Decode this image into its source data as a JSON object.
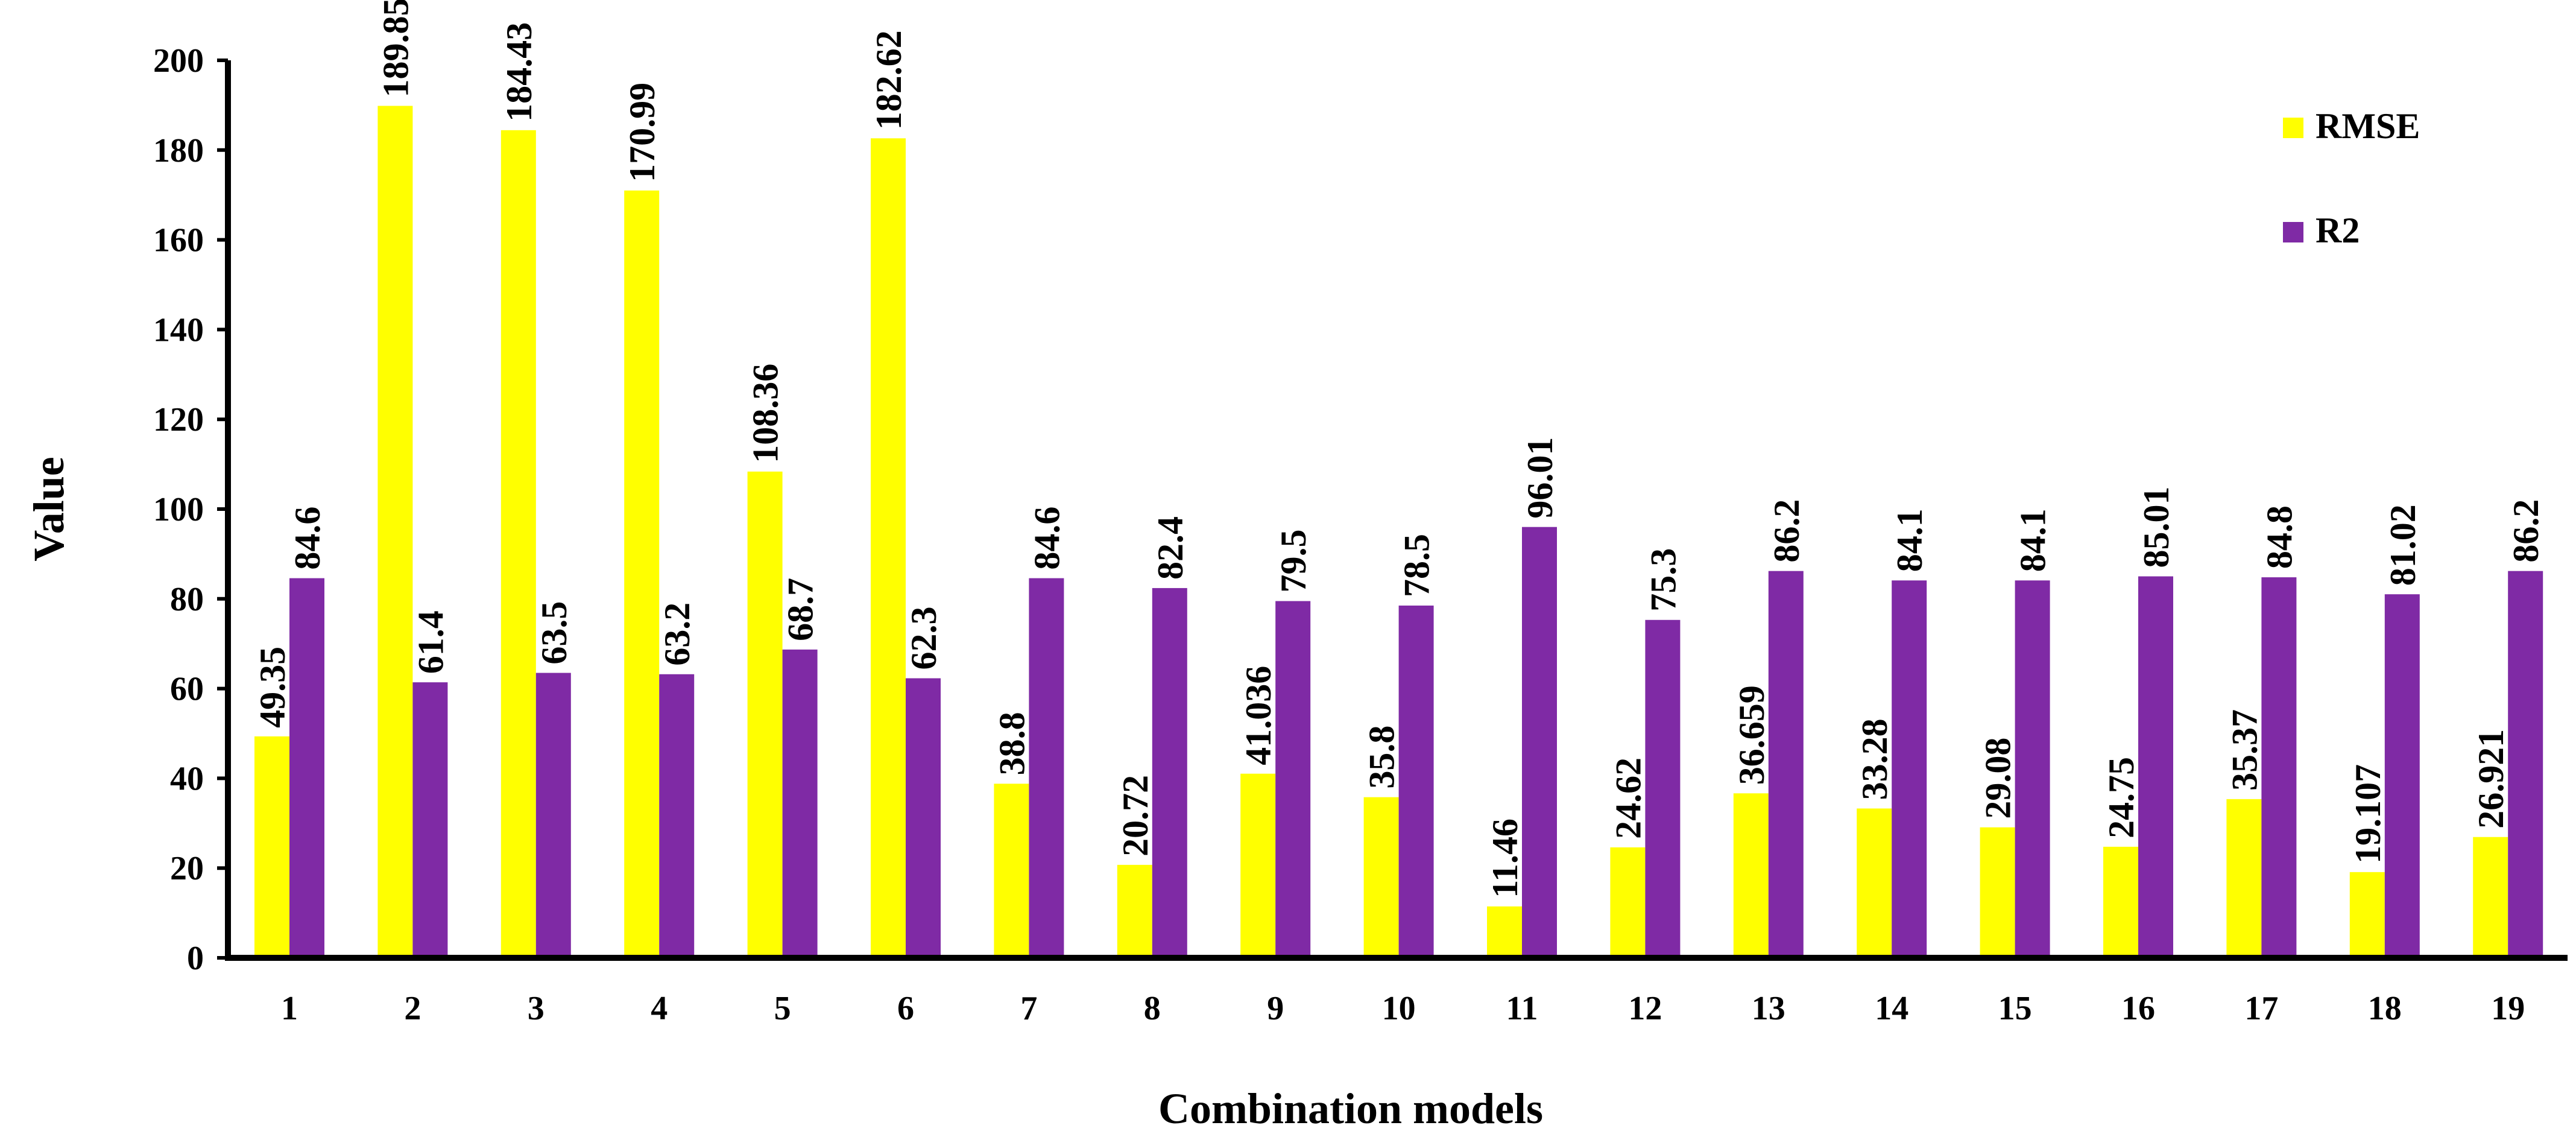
{
  "chart_data": {
    "type": "bar",
    "title": "",
    "xlabel": "Combination models",
    "ylabel": "Value",
    "ylim": [
      0,
      200
    ],
    "yticks": [
      "0",
      "20",
      "40",
      "60",
      "80",
      "100",
      "120",
      "140",
      "160",
      "180",
      "200"
    ],
    "grid": false,
    "legend_position": "top-right",
    "categories": [
      "1",
      "2",
      "3",
      "4",
      "5",
      "6",
      "7",
      "8",
      "9",
      "10",
      "11",
      "12",
      "13",
      "14",
      "15",
      "16",
      "17",
      "18",
      "19"
    ],
    "series": [
      {
        "name": "RMSE",
        "color": "#FFFF00",
        "values": [
          49.35,
          189.85,
          184.43,
          170.99,
          108.36,
          182.62,
          38.8,
          20.72,
          41.036,
          35.8,
          11.46,
          24.62,
          36.659,
          33.28,
          29.08,
          24.75,
          35.37,
          19.107,
          26.921
        ],
        "labels": [
          "49.35",
          "189.85",
          "184.43",
          "170.99",
          "108.36",
          "182.62",
          "38.8",
          "20.72",
          "41.036",
          "35.8",
          "11.46",
          "24.62",
          "36.659",
          "33.28",
          "29.08",
          "24.75",
          "35.37",
          "19.107",
          "26.921"
        ]
      },
      {
        "name": "R2",
        "color": "#7F2AA5",
        "values": [
          84.6,
          61.4,
          63.5,
          63.2,
          68.7,
          62.3,
          84.6,
          82.4,
          79.5,
          78.5,
          96.01,
          75.3,
          86.2,
          84.1,
          84.1,
          85.01,
          84.8,
          81.02,
          86.2
        ],
        "labels": [
          "84.6",
          "61.4",
          "63.5",
          "63.2",
          "68.7",
          "62.3",
          "84.6",
          "82.4",
          "79.5",
          "78.5",
          "96.01",
          "75.3",
          "86.2",
          "84.1",
          "84.1",
          "85.01",
          "84.8",
          "81.02",
          "86.2"
        ]
      }
    ]
  }
}
